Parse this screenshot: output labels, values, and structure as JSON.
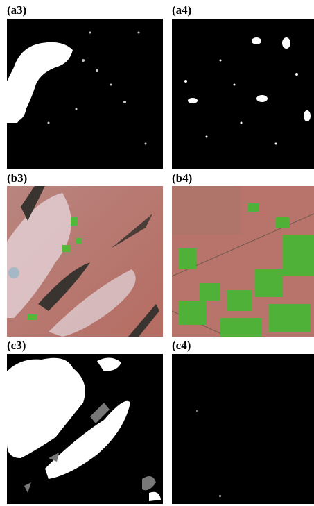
{
  "panels": [
    {
      "label": "(a3)"
    },
    {
      "label": "(a4)"
    },
    {
      "label": "(b3)"
    },
    {
      "label": "(b4)"
    },
    {
      "label": "(c3)"
    },
    {
      "label": "(c4)"
    }
  ]
}
